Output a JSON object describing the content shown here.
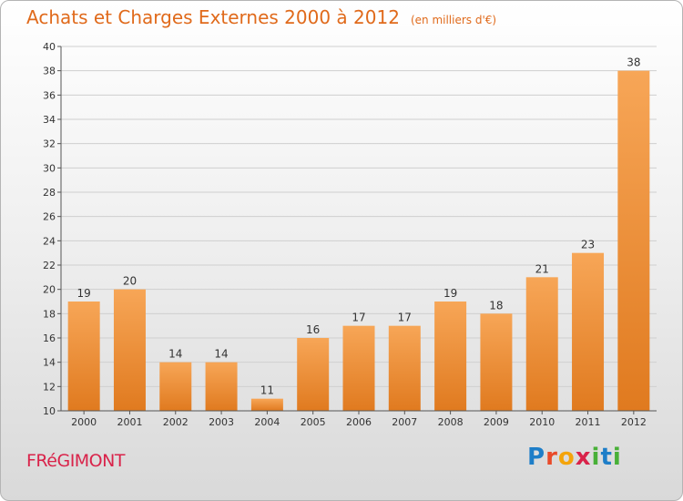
{
  "title": "Achats et Charges Externes 2000 à 2012",
  "subtitle": "(en milliers d'€)",
  "commune": "FRéGIMONT",
  "logo": {
    "letters": [
      "P",
      "r",
      "o",
      "x",
      "i",
      "t",
      "i"
    ],
    "colors": [
      "#1e7ec8",
      "#e94b2a",
      "#f4a40b",
      "#d9234a",
      "#48b038",
      "#1e7ec8",
      "#48b038"
    ]
  },
  "colors": {
    "bar_light": "#f7a657",
    "bar_dark": "#e07a1f",
    "title": "#e06a1b",
    "commune": "#d9234a"
  },
  "chart_data": {
    "type": "bar",
    "categories": [
      "2000",
      "2001",
      "2002",
      "2003",
      "2004",
      "2005",
      "2006",
      "2007",
      "2008",
      "2009",
      "2010",
      "2011",
      "2012"
    ],
    "values": [
      19,
      20,
      14,
      14,
      11,
      16,
      17,
      17,
      19,
      18,
      21,
      23,
      38
    ],
    "yticks": [
      10,
      12,
      14,
      16,
      18,
      20,
      22,
      24,
      26,
      28,
      30,
      32,
      34,
      36,
      38,
      40
    ],
    "ylim": [
      10,
      40
    ],
    "grid": true,
    "legend": "none"
  }
}
